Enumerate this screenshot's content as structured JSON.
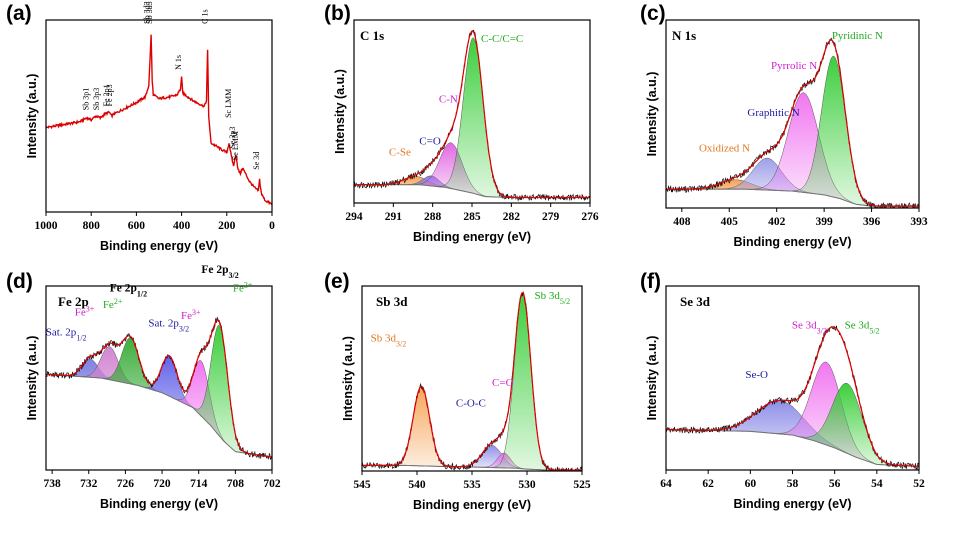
{
  "chart_data": [
    {
      "type": "line",
      "panel_label": "(a)",
      "title": "",
      "xlabel": "Binding energy (eV)",
      "ylabel": "Intensity (a.u.)",
      "xlim": [
        1000,
        0
      ],
      "xticks": [
        1000,
        800,
        600,
        400,
        200,
        0
      ],
      "series": [
        {
          "name": "survey",
          "color": "#dd0000",
          "x": [
            1000,
            950,
            900,
            850,
            820,
            800,
            780,
            760,
            740,
            720,
            710,
            700,
            650,
            600,
            560,
            545,
            535,
            530,
            525,
            500,
            450,
            420,
            405,
            400,
            395,
            350,
            300,
            290,
            285,
            280,
            270,
            230,
            200,
            190,
            180,
            170,
            160,
            150,
            140,
            130,
            100,
            80,
            60,
            55,
            50,
            45,
            30,
            0
          ],
          "y": [
            0.44,
            0.45,
            0.46,
            0.47,
            0.49,
            0.48,
            0.5,
            0.49,
            0.51,
            0.52,
            0.5,
            0.51,
            0.54,
            0.57,
            0.6,
            0.66,
            0.92,
            0.68,
            0.61,
            0.59,
            0.6,
            0.61,
            0.64,
            0.7,
            0.62,
            0.58,
            0.55,
            0.58,
            0.84,
            0.5,
            0.36,
            0.33,
            0.31,
            0.36,
            0.29,
            0.24,
            0.3,
            0.22,
            0.2,
            0.23,
            0.16,
            0.13,
            0.11,
            0.17,
            0.12,
            0.09,
            0.06,
            0.04
          ]
        }
      ],
      "annotations": [
        {
          "text": "Sb 3p1",
          "x": 812,
          "y": 0.53
        },
        {
          "text": "Sb 3p3",
          "x": 765,
          "y": 0.53
        },
        {
          "text": "Fe 2p1",
          "x": 722,
          "y": 0.55
        },
        {
          "text": "Fe 2p3",
          "x": 708,
          "y": 0.55
        },
        {
          "text": "Sb 3d3",
          "x": 541,
          "y": 0.98
        },
        {
          "text": "Sb 3d5",
          "x": 531,
          "y": 0.98
        },
        {
          "text": "N 1s",
          "x": 402,
          "y": 0.74
        },
        {
          "text": "C 1s",
          "x": 285,
          "y": 0.98
        },
        {
          "text": "Sc LMM",
          "x": 182,
          "y": 0.49
        },
        {
          "text": "Se 3p3",
          "x": 163,
          "y": 0.33
        },
        {
          "text": "Se LMM",
          "x": 150,
          "y": 0.27
        },
        {
          "text": "Se 3d",
          "x": 57,
          "y": 0.22
        }
      ]
    },
    {
      "type": "line",
      "panel_label": "(b)",
      "title": "C 1s",
      "xlabel": "Binding energy (eV)",
      "ylabel": "Intensity (a.u.)",
      "xlim": [
        294,
        276
      ],
      "xticks": [
        294,
        291,
        288,
        285,
        282,
        279,
        276
      ],
      "background": {
        "x": [
          294,
          289,
          287,
          286,
          285,
          284,
          282,
          276
        ],
        "y": [
          0.1,
          0.1,
          0.085,
          0.07,
          0.055,
          0.035,
          0.03,
          0.03
        ]
      },
      "peaks": [
        {
          "name": "C-Se",
          "center": 289.3,
          "height": 0.045,
          "sigma": 0.9,
          "color": "#f5a050"
        },
        {
          "name": "C=O",
          "center": 288.1,
          "height": 0.055,
          "sigma": 0.6,
          "color": "#7a7ae0"
        },
        {
          "name": "C-N",
          "center": 286.6,
          "height": 0.25,
          "sigma": 0.85,
          "color": "#e060e0"
        },
        {
          "name": "C-C/C=C",
          "center": 284.9,
          "height": 0.85,
          "sigma": 0.75,
          "color": "#33cc33"
        }
      ],
      "annotations": [
        {
          "text": "C-Se",
          "color": "#e07820",
          "x": 290.5,
          "y": 0.26
        },
        {
          "text": "C=O",
          "color": "#1a1aa0",
          "x": 288.2,
          "y": 0.32
        },
        {
          "text": "C-N",
          "color": "#d020d0",
          "x": 286.8,
          "y": 0.55
        },
        {
          "text": "C-C/C=C",
          "color": "#22aa22",
          "x": 282.7,
          "y": 0.88
        }
      ]
    },
    {
      "type": "line",
      "panel_label": "(c)",
      "title": "N 1s",
      "xlabel": "Binding energy (eV)",
      "ylabel": "Intensity (a.u.)",
      "xlim": [
        409,
        393
      ],
      "xticks": [
        408,
        405,
        402,
        399,
        396,
        393
      ],
      "background": {
        "x": [
          409,
          404,
          401,
          399,
          398,
          397,
          396,
          393
        ],
        "y": [
          0.1,
          0.1,
          0.09,
          0.07,
          0.05,
          0.02,
          0.01,
          0.01
        ]
      },
      "peaks": [
        {
          "name": "Oxidized N",
          "center": 404.6,
          "height": 0.05,
          "sigma": 1.0,
          "color": "#f5a050"
        },
        {
          "name": "Graphitic N",
          "center": 402.6,
          "height": 0.17,
          "sigma": 0.9,
          "color": "#9a9ae8"
        },
        {
          "name": "Pyrrolic N",
          "center": 400.3,
          "height": 0.53,
          "sigma": 0.95,
          "color": "#f070f0"
        },
        {
          "name": "Pyridinic N",
          "center": 398.4,
          "height": 0.75,
          "sigma": 0.75,
          "color": "#33cc33"
        }
      ],
      "annotations": [
        {
          "text": "Oxidized N",
          "color": "#e07820",
          "x": 405.3,
          "y": 0.3
        },
        {
          "text": "Graphitic N",
          "color": "#1a1aa0",
          "x": 402.2,
          "y": 0.49
        },
        {
          "text": "Pyrrolic N",
          "color": "#d020d0",
          "x": 400.9,
          "y": 0.74
        },
        {
          "text": "Pyridinic N",
          "color": "#22aa22",
          "x": 396.9,
          "y": 0.9
        }
      ]
    },
    {
      "type": "line",
      "panel_label": "(d)",
      "title": "Fe 2p",
      "xlabel": "Binding energy (eV)",
      "ylabel": "Intensity (a.u.)",
      "xlim": [
        739,
        702
      ],
      "xticks": [
        738,
        732,
        726,
        720,
        714,
        708,
        702
      ],
      "background": {
        "x": [
          739,
          730,
          724,
          720,
          715,
          712,
          710,
          708,
          702
        ],
        "y": [
          0.52,
          0.5,
          0.46,
          0.42,
          0.34,
          0.24,
          0.16,
          0.1,
          0.07
        ]
      },
      "peaks": [
        {
          "name": "Sat. 2p1/2",
          "center": 731.8,
          "height": 0.1,
          "sigma": 1.3,
          "color": "#7a7ae0"
        },
        {
          "name": "Fe3+ (2p1/2)",
          "center": 728.6,
          "height": 0.18,
          "sigma": 1.4,
          "color": "#d080d0"
        },
        {
          "name": "Fe2+ (2p1/2)",
          "center": 725.2,
          "height": 0.25,
          "sigma": 1.4,
          "color": "#33aa33"
        },
        {
          "name": "Sat. 2p3/2",
          "center": 718.8,
          "height": 0.22,
          "sigma": 1.3,
          "color": "#5a5ae8"
        },
        {
          "name": "Fe3+ (2p3/2)",
          "center": 713.6,
          "height": 0.3,
          "sigma": 1.3,
          "color": "#f070f0"
        },
        {
          "name": "Fe2+ (2p3/2)",
          "center": 710.6,
          "height": 0.6,
          "sigma": 1.35,
          "color": "#33cc33"
        }
      ],
      "annotations": [
        {
          "text": "Sat. 2p",
          "sub": "1/2",
          "color": "#1a1aa0",
          "x": 735.7,
          "y": 0.73
        },
        {
          "text": "Fe",
          "sup": "3+",
          "color": "#d020d0",
          "x": 732.7,
          "y": 0.84
        },
        {
          "text": "Fe",
          "sup": "2+",
          "color": "#22aa22",
          "x": 728.1,
          "y": 0.88
        },
        {
          "text": "Fe 2p",
          "sub": "1/2",
          "color": "#000000",
          "x": 725.5,
          "y": 0.97,
          "bold": true
        },
        {
          "text": "Sat. 2p",
          "sub": "3/2",
          "color": "#1a1aa0",
          "x": 718.9,
          "y": 0.78
        },
        {
          "text": "Fe",
          "sup": "3+",
          "color": "#d020d0",
          "x": 715.3,
          "y": 0.82
        },
        {
          "text": "Fe 2p",
          "sub": "3/2",
          "color": "#000000",
          "x": 710.5,
          "y": 1.07,
          "bold": true
        },
        {
          "text": "Fe",
          "sup": "2+",
          "color": "#22aa22",
          "x": 706.8,
          "y": 0.97
        }
      ]
    },
    {
      "type": "line",
      "panel_label": "(e)",
      "title": "Sb 3d",
      "xlabel": "Binding energy (eV)",
      "ylabel": "Intensity (a.u.)",
      "xlim": [
        545,
        525
      ],
      "xticks": [
        545,
        540,
        535,
        530,
        525
      ],
      "background": {
        "x": [
          545,
          541,
          538,
          534,
          531,
          530,
          528,
          525
        ],
        "y": [
          0.03,
          0.03,
          0.025,
          0.02,
          0.015,
          0.01,
          0.005,
          0.005
        ]
      },
      "peaks": [
        {
          "name": "Sb 3d3/2",
          "center": 539.6,
          "height": 0.43,
          "sigma": 0.75,
          "color": "#f5a050"
        },
        {
          "name": "C-O-C",
          "center": 533.2,
          "height": 0.12,
          "sigma": 0.9,
          "color": "#8a8ae8"
        },
        {
          "name": "C=O",
          "center": 532.1,
          "height": 0.08,
          "sigma": 0.6,
          "color": "#f070f0"
        },
        {
          "name": "Sb 3d5/2",
          "center": 530.4,
          "height": 0.95,
          "sigma": 0.75,
          "color": "#33cc33"
        }
      ],
      "annotations": [
        {
          "text": "Sb 3d",
          "sub": "3/2",
          "color": "#e07820",
          "x": 542.6,
          "y": 0.7
        },
        {
          "text": "C-O-C",
          "color": "#1a1aa0",
          "x": 535.1,
          "y": 0.35
        },
        {
          "text": "C=O",
          "color": "#d020d0",
          "x": 532.2,
          "y": 0.46
        },
        {
          "text": "Sb 3d",
          "sub": "5/2",
          "color": "#22aa22",
          "x": 527.7,
          "y": 0.93
        }
      ]
    },
    {
      "type": "line",
      "panel_label": "(f)",
      "title": "Se 3d",
      "xlabel": "Binding energy (eV)",
      "ylabel": "Intensity (a.u.)",
      "xlim": [
        64,
        52
      ],
      "xticks": [
        64,
        62,
        60,
        58,
        56,
        54,
        52
      ],
      "background": {
        "x": [
          64,
          60,
          58,
          57,
          56,
          55,
          54,
          52
        ],
        "y": [
          0.22,
          0.21,
          0.19,
          0.16,
          0.12,
          0.07,
          0.03,
          0.02
        ]
      },
      "peaks": [
        {
          "name": "Se-O",
          "center": 58.6,
          "height": 0.18,
          "sigma": 1.1,
          "color": "#8a8ae8"
        },
        {
          "name": "Se 3d3/2",
          "center": 56.4,
          "height": 0.45,
          "sigma": 0.7,
          "color": "#f070f0"
        },
        {
          "name": "Se 3d5/2",
          "center": 55.4,
          "height": 0.38,
          "sigma": 0.7,
          "color": "#33cc33"
        }
      ],
      "annotations": [
        {
          "text": "Se-O",
          "color": "#1a1aa0",
          "x": 59.7,
          "y": 0.5
        },
        {
          "text": "Se 3d",
          "sub": "3/2",
          "color": "#d020d0",
          "x": 57.2,
          "y": 0.77
        },
        {
          "text": "Se 3d",
          "sub": "5/2",
          "color": "#22aa22",
          "x": 54.7,
          "y": 0.77
        }
      ]
    }
  ]
}
